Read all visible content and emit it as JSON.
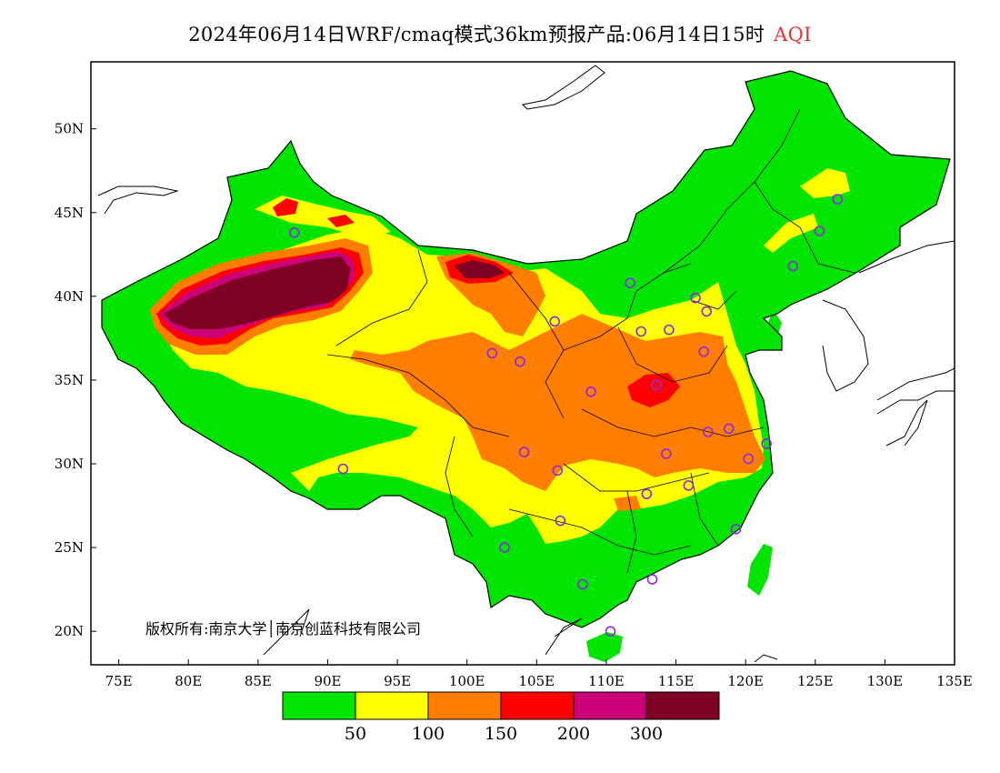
{
  "title": {
    "main": "2024年06月14日WRF/cmaq模式36km预报产品:06月14日15时",
    "tag": "AQI"
  },
  "copyright": "版权所有:南京大学│南京创蓝科技有限公司",
  "axes": {
    "lon_ticks": [
      "75E",
      "80E",
      "85E",
      "90E",
      "95E",
      "100E",
      "105E",
      "110E",
      "115E",
      "120E",
      "125E",
      "130E",
      "135E"
    ],
    "lat_ticks": [
      "50N",
      "45N",
      "40N",
      "35N",
      "30N",
      "25N",
      "20N"
    ],
    "lon_range": [
      73,
      135
    ],
    "lat_range": [
      18,
      54
    ]
  },
  "colorbar": {
    "colors": [
      "#00e400",
      "#ffff00",
      "#ff7e00",
      "#ff0000",
      "#cc0077",
      "#7e0023"
    ],
    "labels": [
      "50",
      "100",
      "150",
      "200",
      "300"
    ]
  },
  "stations": [
    {
      "lon": 87.6,
      "lat": 43.8
    },
    {
      "lon": 91.1,
      "lat": 29.7
    },
    {
      "lon": 101.8,
      "lat": 36.6
    },
    {
      "lon": 103.8,
      "lat": 36.1
    },
    {
      "lon": 106.3,
      "lat": 38.5
    },
    {
      "lon": 111.7,
      "lat": 40.8
    },
    {
      "lon": 112.5,
      "lat": 37.9
    },
    {
      "lon": 114.5,
      "lat": 38.0
    },
    {
      "lon": 116.4,
      "lat": 39.9
    },
    {
      "lon": 117.2,
      "lat": 39.1
    },
    {
      "lon": 117.0,
      "lat": 36.7
    },
    {
      "lon": 113.6,
      "lat": 34.7
    },
    {
      "lon": 108.9,
      "lat": 34.3
    },
    {
      "lon": 104.1,
      "lat": 30.7
    },
    {
      "lon": 106.5,
      "lat": 29.6
    },
    {
      "lon": 114.3,
      "lat": 30.6
    },
    {
      "lon": 117.3,
      "lat": 31.9
    },
    {
      "lon": 118.8,
      "lat": 32.1
    },
    {
      "lon": 121.5,
      "lat": 31.2
    },
    {
      "lon": 120.2,
      "lat": 30.3
    },
    {
      "lon": 115.9,
      "lat": 28.7
    },
    {
      "lon": 112.9,
      "lat": 28.2
    },
    {
      "lon": 106.7,
      "lat": 26.6
    },
    {
      "lon": 102.7,
      "lat": 25.0
    },
    {
      "lon": 108.3,
      "lat": 22.8
    },
    {
      "lon": 113.3,
      "lat": 23.1
    },
    {
      "lon": 119.3,
      "lat": 26.1
    },
    {
      "lon": 110.3,
      "lat": 20.0
    },
    {
      "lon": 123.4,
      "lat": 41.8
    },
    {
      "lon": 125.3,
      "lat": 43.9
    },
    {
      "lon": 126.6,
      "lat": 45.8
    }
  ]
}
